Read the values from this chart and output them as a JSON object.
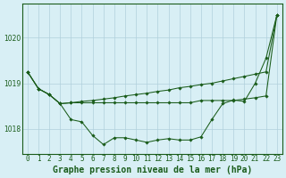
{
  "xlabel": "Graphe pression niveau de la mer (hPa)",
  "x": [
    0,
    1,
    2,
    3,
    4,
    5,
    6,
    7,
    8,
    9,
    10,
    11,
    12,
    13,
    14,
    15,
    16,
    17,
    18,
    19,
    20,
    21,
    22,
    23
  ],
  "line1": [
    1019.25,
    1018.88,
    1018.75,
    1018.55,
    1018.2,
    1018.15,
    1017.85,
    1017.65,
    1017.8,
    1017.8,
    1017.75,
    1017.7,
    1017.75,
    1017.78,
    1017.75,
    1017.75,
    1017.82,
    1018.2,
    1018.55,
    1018.63,
    1018.6,
    1019.0,
    1019.55,
    1020.5
  ],
  "line2": [
    1019.25,
    1018.88,
    1018.75,
    1018.55,
    1018.57,
    1018.57,
    1018.57,
    1018.57,
    1018.57,
    1018.57,
    1018.57,
    1018.57,
    1018.57,
    1018.57,
    1018.57,
    1018.57,
    1018.62,
    1018.62,
    1018.62,
    1018.62,
    1018.65,
    1018.68,
    1018.72,
    1020.5
  ],
  "line3": [
    1019.25,
    1018.88,
    1018.75,
    1018.55,
    1018.57,
    1018.6,
    1018.62,
    1018.65,
    1018.68,
    1018.72,
    1018.75,
    1018.78,
    1018.82,
    1018.85,
    1018.9,
    1018.93,
    1018.97,
    1019.0,
    1019.05,
    1019.1,
    1019.15,
    1019.2,
    1019.25,
    1020.5
  ],
  "bg_color": "#d8eff5",
  "grid_color": "#b0d0dc",
  "line_color": "#1a5c1a",
  "marker": "D",
  "marker_size": 1.8,
  "ylim": [
    1017.45,
    1020.75
  ],
  "yticks": [
    1018,
    1019,
    1020
  ],
  "xticks": [
    0,
    1,
    2,
    3,
    4,
    5,
    6,
    7,
    8,
    9,
    10,
    11,
    12,
    13,
    14,
    15,
    16,
    17,
    18,
    19,
    20,
    21,
    22,
    23
  ],
  "tick_fontsize": 5.5,
  "label_fontsize": 7,
  "label_fontweight": "bold"
}
